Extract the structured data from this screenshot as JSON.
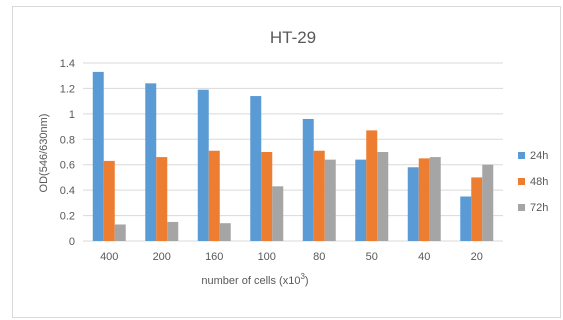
{
  "chart_data": {
    "type": "bar",
    "title": "HT-29",
    "xlabel": "number of cells (x10",
    "xlabel_sup": "3",
    "xlabel_end": ")",
    "ylabel": "OD(546/630nm)",
    "categories": [
      "400",
      "200",
      "160",
      "100",
      "80",
      "50",
      "40",
      "20"
    ],
    "ylim": [
      0,
      1.4
    ],
    "yticks": [
      "0",
      "0.2",
      "0.4",
      "0.6",
      "0.8",
      "1",
      "1.2",
      "1.4"
    ],
    "ytick_values": [
      0,
      0.2,
      0.4,
      0.6,
      0.8,
      1.0,
      1.2,
      1.4
    ],
    "grid": true,
    "legend_position": "right",
    "series": [
      {
        "name": "24h",
        "color": "#5b9bd5",
        "values": [
          1.33,
          1.24,
          1.19,
          1.14,
          0.96,
          0.64,
          0.58,
          0.35
        ]
      },
      {
        "name": "48h",
        "color": "#ed7d31",
        "values": [
          0.63,
          0.66,
          0.71,
          0.7,
          0.71,
          0.87,
          0.65,
          0.5
        ]
      },
      {
        "name": "72h",
        "color": "#a5a5a5",
        "values": [
          0.13,
          0.15,
          0.14,
          0.43,
          0.64,
          0.7,
          0.66,
          0.6
        ]
      }
    ]
  }
}
